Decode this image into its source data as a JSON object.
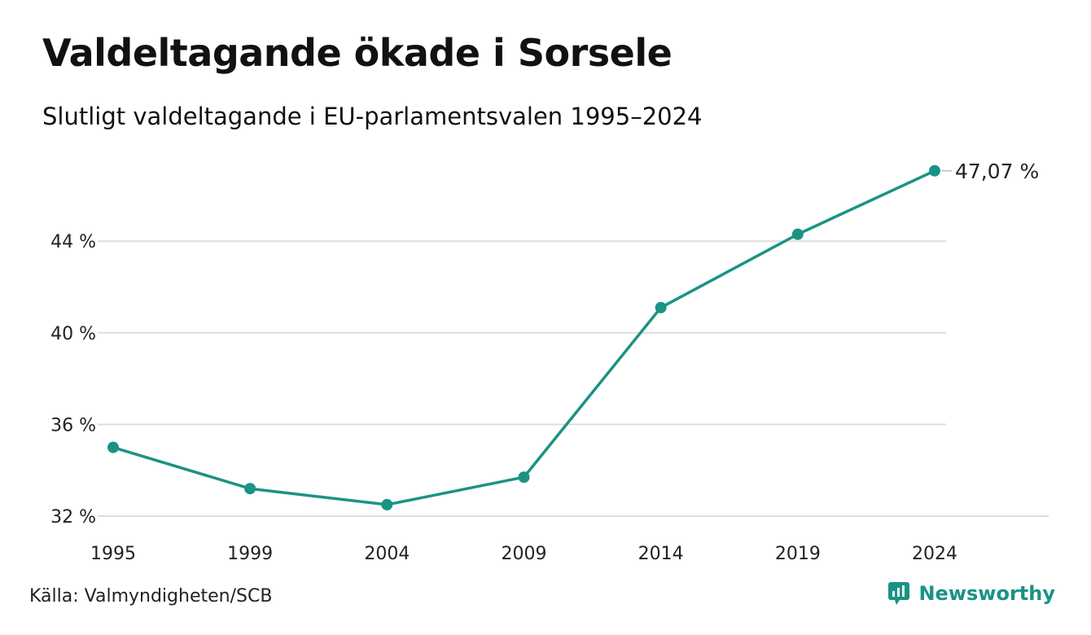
{
  "header": {
    "title": "Valdeltagande ökade i Sorsele",
    "subtitle": "Slutligt valdeltagande i EU-parlamentsvalen 1995–2024"
  },
  "footer": {
    "source": "Källa: Valmyndigheten/SCB",
    "brand": "Newsworthy"
  },
  "colors": {
    "line": "#1a9384",
    "grid": "#dddddd",
    "brand": "#1a9384"
  },
  "chart_data": {
    "type": "line",
    "x": [
      "1995",
      "1999",
      "2004",
      "2009",
      "2014",
      "2019",
      "2024"
    ],
    "series": [
      {
        "values": [
          35.0,
          33.2,
          32.5,
          33.7,
          41.1,
          44.3,
          47.07
        ]
      }
    ],
    "y_ticks": [
      32,
      36,
      40,
      44
    ],
    "y_tick_labels": [
      "32 %",
      "36 %",
      "40 %",
      "44 %"
    ],
    "ylim": [
      32,
      47.07
    ],
    "end_label": "47,07 %",
    "grid": true,
    "xlabel": "",
    "ylabel": ""
  }
}
